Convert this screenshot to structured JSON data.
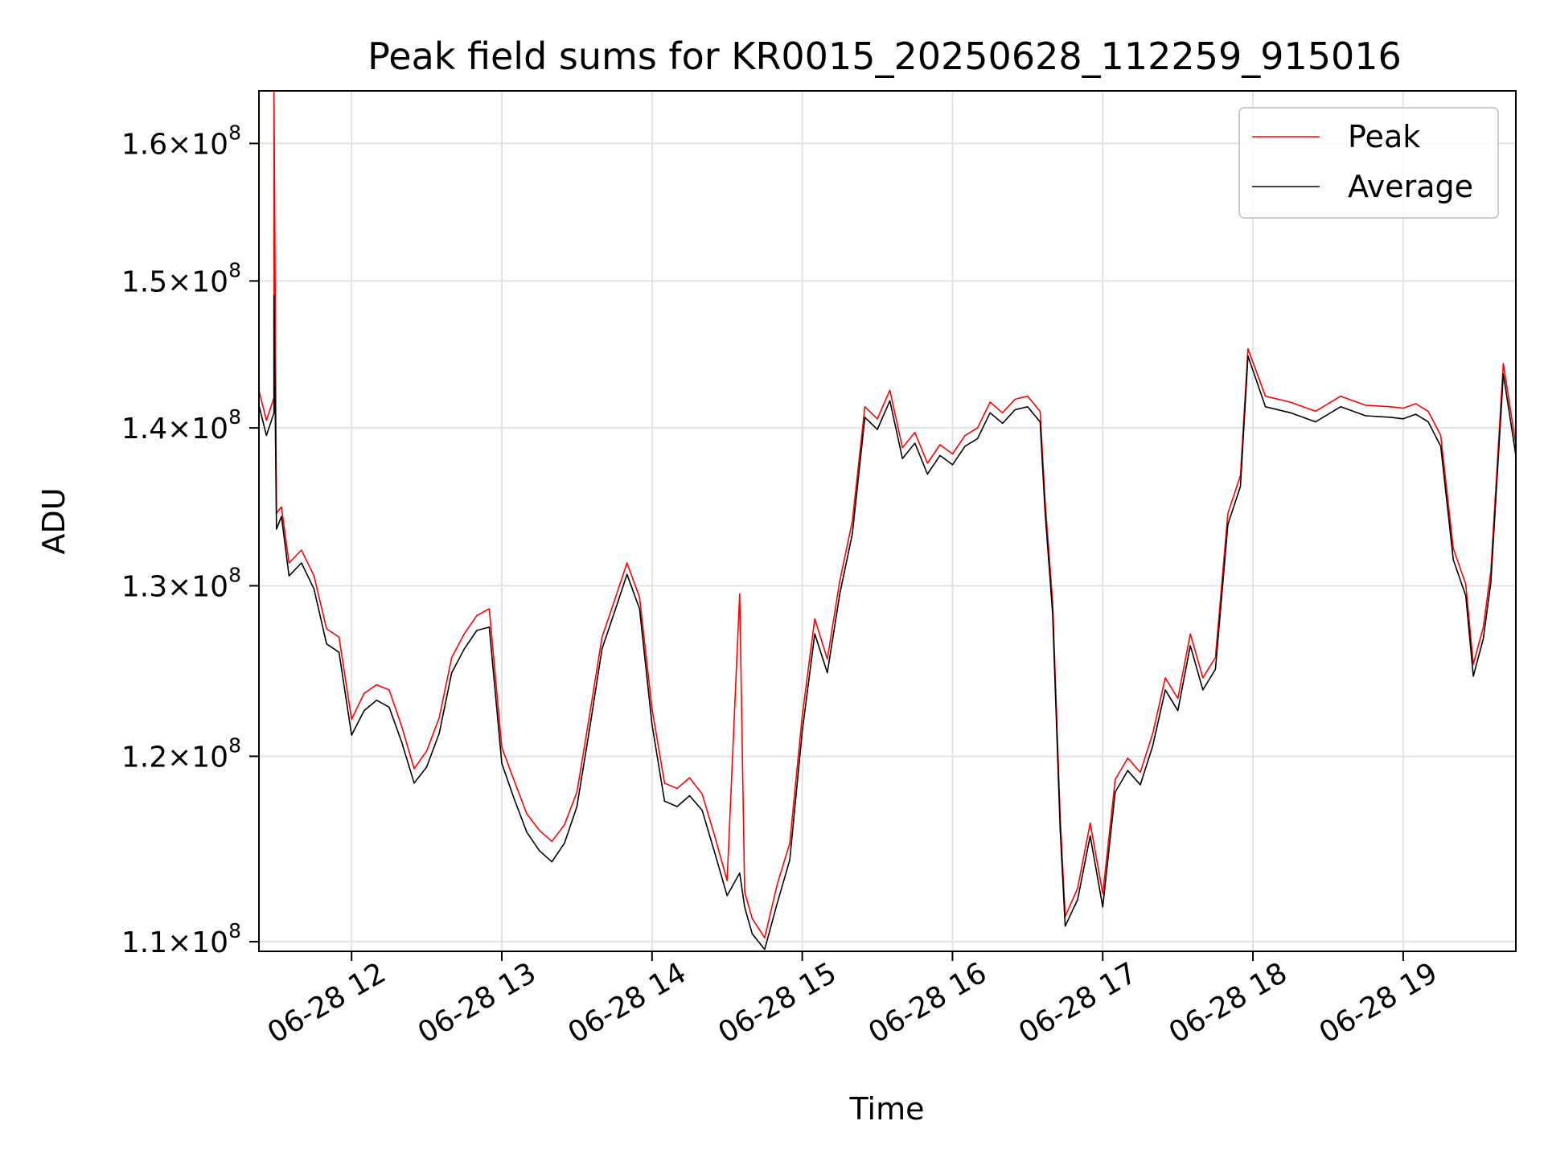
{
  "chart_data": {
    "type": "line",
    "title": "Peak field sums for KR0015_20250628_112259_915016",
    "xlabel": "Time",
    "ylabel": "ADU",
    "y_scale": "log",
    "xlim": [
      "2025-06-28 11:23",
      "2025-06-28 19:45"
    ],
    "ylim": [
      109500000,
      164000000
    ],
    "grid": true,
    "legend_position": "top-right",
    "x_ticks": [
      {
        "value": "2025-06-28 12:00",
        "label": "06-28 12"
      },
      {
        "value": "2025-06-28 13:00",
        "label": "06-28 13"
      },
      {
        "value": "2025-06-28 14:00",
        "label": "06-28 14"
      },
      {
        "value": "2025-06-28 15:00",
        "label": "06-28 15"
      },
      {
        "value": "2025-06-28 16:00",
        "label": "06-28 16"
      },
      {
        "value": "2025-06-28 17:00",
        "label": "06-28 17"
      },
      {
        "value": "2025-06-28 18:00",
        "label": "06-28 18"
      },
      {
        "value": "2025-06-28 19:00",
        "label": "06-28 19"
      }
    ],
    "y_ticks": [
      {
        "value": 110000000,
        "label": "1.1"
      },
      {
        "value": 120000000,
        "label": "1.2"
      },
      {
        "value": 130000000,
        "label": "1.3"
      },
      {
        "value": 140000000,
        "label": "1.4"
      },
      {
        "value": 150000000,
        "label": "1.5"
      },
      {
        "value": 160000000,
        "label": "1.6"
      }
    ],
    "y_tick_suffix": {
      "times": "×",
      "base": "10",
      "exponent": "8"
    },
    "series": [
      {
        "name": "Average",
        "color": "#000000",
        "points": [
          [
            "2025-06-28 11:23",
            141500000
          ],
          [
            "2025-06-28 11:26",
            139500000
          ],
          [
            "2025-06-28 11:29",
            141000000
          ],
          [
            "2025-06-28 11:29",
            149000000
          ],
          [
            "2025-06-28 11:30",
            133500000
          ],
          [
            "2025-06-28 11:32",
            134300000
          ],
          [
            "2025-06-28 11:35",
            130600000
          ],
          [
            "2025-06-28 11:40",
            131400000
          ],
          [
            "2025-06-28 11:45",
            129800000
          ],
          [
            "2025-06-28 11:50",
            126500000
          ],
          [
            "2025-06-28 11:55",
            126000000
          ],
          [
            "2025-06-28 12:00",
            121200000
          ],
          [
            "2025-06-28 12:05",
            122600000
          ],
          [
            "2025-06-28 12:10",
            123200000
          ],
          [
            "2025-06-28 12:15",
            122800000
          ],
          [
            "2025-06-28 12:20",
            120800000
          ],
          [
            "2025-06-28 12:25",
            118500000
          ],
          [
            "2025-06-28 12:30",
            119400000
          ],
          [
            "2025-06-28 12:35",
            121300000
          ],
          [
            "2025-06-28 12:40",
            124800000
          ],
          [
            "2025-06-28 12:45",
            126200000
          ],
          [
            "2025-06-28 12:50",
            127300000
          ],
          [
            "2025-06-28 12:55",
            127500000
          ],
          [
            "2025-06-28 13:00",
            119600000
          ],
          [
            "2025-06-28 13:05",
            117600000
          ],
          [
            "2025-06-28 13:10",
            115800000
          ],
          [
            "2025-06-28 13:15",
            114800000
          ],
          [
            "2025-06-28 13:20",
            114200000
          ],
          [
            "2025-06-28 13:25",
            115200000
          ],
          [
            "2025-06-28 13:30",
            117200000
          ],
          [
            "2025-06-28 13:35",
            121500000
          ],
          [
            "2025-06-28 13:40",
            126200000
          ],
          [
            "2025-06-28 13:45",
            128400000
          ],
          [
            "2025-06-28 13:50",
            130700000
          ],
          [
            "2025-06-28 13:55",
            128600000
          ],
          [
            "2025-06-28 14:00",
            121800000
          ],
          [
            "2025-06-28 14:05",
            117500000
          ],
          [
            "2025-06-28 14:10",
            117200000
          ],
          [
            "2025-06-28 14:15",
            117800000
          ],
          [
            "2025-06-28 14:20",
            117000000
          ],
          [
            "2025-06-28 14:25",
            114700000
          ],
          [
            "2025-06-28 14:30",
            112400000
          ],
          [
            "2025-06-28 14:35",
            113600000
          ],
          [
            "2025-06-28 14:37",
            111800000
          ],
          [
            "2025-06-28 14:40",
            110400000
          ],
          [
            "2025-06-28 14:45",
            109600000
          ],
          [
            "2025-06-28 14:50",
            112000000
          ],
          [
            "2025-06-28 14:55",
            114300000
          ],
          [
            "2025-06-28 15:00",
            121400000
          ],
          [
            "2025-06-28 15:05",
            127100000
          ],
          [
            "2025-06-28 15:10",
            124800000
          ],
          [
            "2025-06-28 15:15",
            129500000
          ],
          [
            "2025-06-28 15:20",
            133200000
          ],
          [
            "2025-06-28 15:25",
            140700000
          ],
          [
            "2025-06-28 15:30",
            139900000
          ],
          [
            "2025-06-28 15:35",
            141800000
          ],
          [
            "2025-06-28 15:40",
            138000000
          ],
          [
            "2025-06-28 15:45",
            139000000
          ],
          [
            "2025-06-28 15:50",
            137000000
          ],
          [
            "2025-06-28 15:55",
            138200000
          ],
          [
            "2025-06-28 16:00",
            137600000
          ],
          [
            "2025-06-28 16:05",
            138800000
          ],
          [
            "2025-06-28 16:10",
            139300000
          ],
          [
            "2025-06-28 16:15",
            141000000
          ],
          [
            "2025-06-28 16:20",
            140300000
          ],
          [
            "2025-06-28 16:25",
            141200000
          ],
          [
            "2025-06-28 16:30",
            141400000
          ],
          [
            "2025-06-28 16:35",
            140400000
          ],
          [
            "2025-06-28 16:37",
            134500000
          ],
          [
            "2025-06-28 16:40",
            128300000
          ],
          [
            "2025-06-28 16:43",
            116000000
          ],
          [
            "2025-06-28 16:45",
            110800000
          ],
          [
            "2025-06-28 16:50",
            112200000
          ],
          [
            "2025-06-28 16:55",
            115600000
          ],
          [
            "2025-06-28 17:00",
            111800000
          ],
          [
            "2025-06-28 17:05",
            118000000
          ],
          [
            "2025-06-28 17:10",
            119200000
          ],
          [
            "2025-06-28 17:15",
            118400000
          ],
          [
            "2025-06-28 17:20",
            120600000
          ],
          [
            "2025-06-28 17:25",
            123800000
          ],
          [
            "2025-06-28 17:30",
            122600000
          ],
          [
            "2025-06-28 17:35",
            126400000
          ],
          [
            "2025-06-28 17:40",
            123800000
          ],
          [
            "2025-06-28 17:45",
            125000000
          ],
          [
            "2025-06-28 17:50",
            133800000
          ],
          [
            "2025-06-28 17:55",
            136200000
          ],
          [
            "2025-06-28 17:58",
            144800000
          ],
          [
            "2025-06-28 18:05",
            141400000
          ],
          [
            "2025-06-28 18:15",
            141000000
          ],
          [
            "2025-06-28 18:25",
            140400000
          ],
          [
            "2025-06-28 18:35",
            141400000
          ],
          [
            "2025-06-28 18:45",
            140800000
          ],
          [
            "2025-06-28 18:55",
            140700000
          ],
          [
            "2025-06-28 19:00",
            140600000
          ],
          [
            "2025-06-28 19:05",
            140900000
          ],
          [
            "2025-06-28 19:10",
            140400000
          ],
          [
            "2025-06-28 19:15",
            138800000
          ],
          [
            "2025-06-28 19:20",
            131600000
          ],
          [
            "2025-06-28 19:25",
            129400000
          ],
          [
            "2025-06-28 19:28",
            124600000
          ],
          [
            "2025-06-28 19:32",
            126800000
          ],
          [
            "2025-06-28 19:35",
            130200000
          ],
          [
            "2025-06-28 19:40",
            143600000
          ],
          [
            "2025-06-28 19:45",
            138200000
          ]
        ]
      },
      {
        "name": "Peak",
        "color": "#ff0000",
        "points": [
          [
            "2025-06-28 11:23",
            142500000
          ],
          [
            "2025-06-28 11:26",
            140500000
          ],
          [
            "2025-06-28 11:29",
            142000000
          ],
          [
            "2025-06-28 11:29",
            164000000
          ],
          [
            "2025-06-28 11:30",
            134500000
          ],
          [
            "2025-06-28 11:32",
            134900000
          ],
          [
            "2025-06-28 11:35",
            131400000
          ],
          [
            "2025-06-28 11:40",
            132200000
          ],
          [
            "2025-06-28 11:45",
            130600000
          ],
          [
            "2025-06-28 11:50",
            127400000
          ],
          [
            "2025-06-28 11:55",
            126900000
          ],
          [
            "2025-06-28 12:00",
            122100000
          ],
          [
            "2025-06-28 12:05",
            123600000
          ],
          [
            "2025-06-28 12:10",
            124100000
          ],
          [
            "2025-06-28 12:15",
            123800000
          ],
          [
            "2025-06-28 12:20",
            121700000
          ],
          [
            "2025-06-28 12:25",
            119300000
          ],
          [
            "2025-06-28 12:30",
            120300000
          ],
          [
            "2025-06-28 12:35",
            122200000
          ],
          [
            "2025-06-28 12:40",
            125700000
          ],
          [
            "2025-06-28 12:45",
            127100000
          ],
          [
            "2025-06-28 12:50",
            128200000
          ],
          [
            "2025-06-28 12:55",
            128600000
          ],
          [
            "2025-06-28 13:00",
            120500000
          ],
          [
            "2025-06-28 13:05",
            118600000
          ],
          [
            "2025-06-28 13:10",
            116800000
          ],
          [
            "2025-06-28 13:15",
            115900000
          ],
          [
            "2025-06-28 13:20",
            115300000
          ],
          [
            "2025-06-28 13:25",
            116200000
          ],
          [
            "2025-06-28 13:30",
            118000000
          ],
          [
            "2025-06-28 13:35",
            122300000
          ],
          [
            "2025-06-28 13:40",
            126900000
          ],
          [
            "2025-06-28 13:45",
            129100000
          ],
          [
            "2025-06-28 13:50",
            131400000
          ],
          [
            "2025-06-28 13:55",
            129300000
          ],
          [
            "2025-06-28 14:00",
            122700000
          ],
          [
            "2025-06-28 14:05",
            118500000
          ],
          [
            "2025-06-28 14:10",
            118200000
          ],
          [
            "2025-06-28 14:15",
            118800000
          ],
          [
            "2025-06-28 14:20",
            117900000
          ],
          [
            "2025-06-28 14:25",
            115600000
          ],
          [
            "2025-06-28 14:30",
            113200000
          ],
          [
            "2025-06-28 14:35",
            129500000
          ],
          [
            "2025-06-28 14:37",
            112600000
          ],
          [
            "2025-06-28 14:40",
            111200000
          ],
          [
            "2025-06-28 14:45",
            110200000
          ],
          [
            "2025-06-28 14:50",
            113000000
          ],
          [
            "2025-06-28 14:55",
            115200000
          ],
          [
            "2025-06-28 15:00",
            122300000
          ],
          [
            "2025-06-28 15:05",
            128000000
          ],
          [
            "2025-06-28 15:10",
            125600000
          ],
          [
            "2025-06-28 15:15",
            130300000
          ],
          [
            "2025-06-28 15:20",
            134000000
          ],
          [
            "2025-06-28 15:25",
            141400000
          ],
          [
            "2025-06-28 15:30",
            140600000
          ],
          [
            "2025-06-28 15:35",
            142500000
          ],
          [
            "2025-06-28 15:40",
            138700000
          ],
          [
            "2025-06-28 15:45",
            139700000
          ],
          [
            "2025-06-28 15:50",
            137700000
          ],
          [
            "2025-06-28 15:55",
            138900000
          ],
          [
            "2025-06-28 16:00",
            138300000
          ],
          [
            "2025-06-28 16:05",
            139500000
          ],
          [
            "2025-06-28 16:10",
            140000000
          ],
          [
            "2025-06-28 16:15",
            141700000
          ],
          [
            "2025-06-28 16:20",
            141000000
          ],
          [
            "2025-06-28 16:25",
            141900000
          ],
          [
            "2025-06-28 16:30",
            142100000
          ],
          [
            "2025-06-28 16:35",
            141100000
          ],
          [
            "2025-06-28 16:37",
            135200000
          ],
          [
            "2025-06-28 16:40",
            129000000
          ],
          [
            "2025-06-28 16:43",
            116700000
          ],
          [
            "2025-06-28 16:45",
            111300000
          ],
          [
            "2025-06-28 16:50",
            112800000
          ],
          [
            "2025-06-28 16:55",
            116300000
          ],
          [
            "2025-06-28 17:00",
            112500000
          ],
          [
            "2025-06-28 17:05",
            118700000
          ],
          [
            "2025-06-28 17:10",
            119900000
          ],
          [
            "2025-06-28 17:15",
            119100000
          ],
          [
            "2025-06-28 17:20",
            121300000
          ],
          [
            "2025-06-28 17:25",
            124500000
          ],
          [
            "2025-06-28 17:30",
            123300000
          ],
          [
            "2025-06-28 17:35",
            127100000
          ],
          [
            "2025-06-28 17:40",
            124500000
          ],
          [
            "2025-06-28 17:45",
            125700000
          ],
          [
            "2025-06-28 17:50",
            134500000
          ],
          [
            "2025-06-28 17:55",
            136900000
          ],
          [
            "2025-06-28 17:58",
            145300000
          ],
          [
            "2025-06-28 18:05",
            142100000
          ],
          [
            "2025-06-28 18:15",
            141700000
          ],
          [
            "2025-06-28 18:25",
            141100000
          ],
          [
            "2025-06-28 18:35",
            142100000
          ],
          [
            "2025-06-28 18:45",
            141500000
          ],
          [
            "2025-06-28 18:55",
            141400000
          ],
          [
            "2025-06-28 19:00",
            141300000
          ],
          [
            "2025-06-28 19:05",
            141600000
          ],
          [
            "2025-06-28 19:10",
            141100000
          ],
          [
            "2025-06-28 19:15",
            139500000
          ],
          [
            "2025-06-28 19:20",
            132300000
          ],
          [
            "2025-06-28 19:25",
            130100000
          ],
          [
            "2025-06-28 19:28",
            125300000
          ],
          [
            "2025-06-28 19:32",
            127500000
          ],
          [
            "2025-06-28 19:35",
            130900000
          ],
          [
            "2025-06-28 19:40",
            144300000
          ],
          [
            "2025-06-28 19:45",
            138900000
          ]
        ]
      }
    ]
  }
}
